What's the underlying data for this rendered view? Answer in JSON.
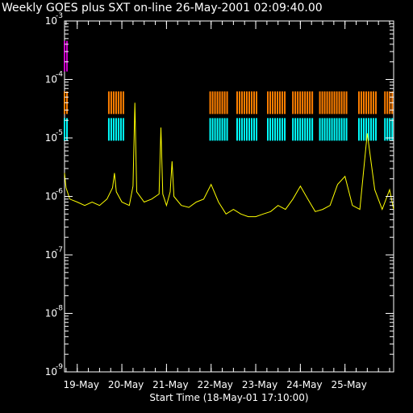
{
  "chart_data": {
    "type": "line",
    "title": "Weekly GOES plus SXT on-line 26-May-2001 02:09:40.00",
    "xlabel": "Start Time (18-May-01 17:10:00)",
    "ylabel": "",
    "y_scale": "log",
    "ylim": [
      1e-09,
      0.001
    ],
    "xlim": [
      "2001-05-18 17:10",
      "2001-05-26 02:10"
    ],
    "grid": false,
    "legend": "none",
    "x_ticks": [
      "19-May",
      "20-May",
      "21-May",
      "22-May",
      "23-May",
      "24-May",
      "25-May"
    ],
    "x_tick_dates": [
      "2001-05-19",
      "2001-05-20",
      "2001-05-21",
      "2001-05-22",
      "2001-05-23",
      "2001-05-24",
      "2001-05-25"
    ],
    "y_ticks": [
      {
        "base": "10",
        "exp": "-9",
        "value": 1e-09
      },
      {
        "base": "10",
        "exp": "-8",
        "value": 1e-08
      },
      {
        "base": "10",
        "exp": "-7",
        "value": 1e-07
      },
      {
        "base": "10",
        "exp": "-6",
        "value": 1e-06
      },
      {
        "base": "10",
        "exp": "-5",
        "value": 1e-05
      },
      {
        "base": "10",
        "exp": "-4",
        "value": 0.0001
      },
      {
        "base": "10",
        "exp": "-3",
        "value": 0.001
      }
    ],
    "series": [
      {
        "color": "#ffff00",
        "x": [
          "2001-05-18 17:10",
          "2001-05-18 18:00",
          "2001-05-18 20:00",
          "2001-05-19 00:00",
          "2001-05-19 04:00",
          "2001-05-19 08:00",
          "2001-05-19 12:00",
          "2001-05-19 16:00",
          "2001-05-19 19:00",
          "2001-05-19 20:00",
          "2001-05-19 21:00",
          "2001-05-20 00:00",
          "2001-05-20 04:00",
          "2001-05-20 06:00",
          "2001-05-20 07:00",
          "2001-05-20 08:00",
          "2001-05-20 12:00",
          "2001-05-20 16:00",
          "2001-05-20 20:00",
          "2001-05-20 21:00",
          "2001-05-20 22:00",
          "2001-05-21 00:00",
          "2001-05-21 02:00",
          "2001-05-21 03:00",
          "2001-05-21 04:00",
          "2001-05-21 08:00",
          "2001-05-21 12:00",
          "2001-05-21 16:00",
          "2001-05-21 20:00",
          "2001-05-22 00:00",
          "2001-05-22 04:00",
          "2001-05-22 08:00",
          "2001-05-22 12:00",
          "2001-05-22 16:00",
          "2001-05-22 20:00",
          "2001-05-23 00:00",
          "2001-05-23 04:00",
          "2001-05-23 08:00",
          "2001-05-23 12:00",
          "2001-05-23 16:00",
          "2001-05-23 20:00",
          "2001-05-24 00:00",
          "2001-05-24 04:00",
          "2001-05-24 08:00",
          "2001-05-24 12:00",
          "2001-05-24 16:00",
          "2001-05-24 20:00",
          "2001-05-25 00:00",
          "2001-05-25 04:00",
          "2001-05-25 08:00",
          "2001-05-25 12:00",
          "2001-05-25 16:00",
          "2001-05-25 20:00",
          "2001-05-26 00:00",
          "2001-05-26 02:10"
        ],
        "values": [
          2.5e-06,
          1.4e-06,
          9e-07,
          8e-07,
          7e-07,
          8e-07,
          7e-07,
          9e-07,
          1.4e-06,
          2.5e-06,
          1.2e-06,
          8e-07,
          7e-07,
          1.5e-06,
          4e-05,
          1.2e-06,
          8e-07,
          9e-07,
          1.1e-06,
          1.5e-05,
          1.1e-06,
          7e-07,
          1.2e-06,
          4e-06,
          1e-06,
          7e-07,
          6.5e-07,
          8e-07,
          9e-07,
          1.6e-06,
          8e-07,
          5e-07,
          6e-07,
          5e-07,
          4.5e-07,
          4.5e-07,
          5e-07,
          5.5e-07,
          7e-07,
          6e-07,
          9e-07,
          1.5e-06,
          9e-07,
          5.5e-07,
          6e-07,
          7e-07,
          1.6e-06,
          2.2e-06,
          7e-07,
          6e-07,
          1.2e-05,
          1.3e-06,
          6e-07,
          1.3e-06,
          6e-07
        ]
      },
      {
        "color": "#ff7f00",
        "markers": "vertical ticks"
      },
      {
        "color": "#00ffff",
        "markers": "vertical ticks"
      },
      {
        "color": "#cc00cc",
        "markers": "vertical ticks"
      }
    ],
    "sxt_bands": [
      {
        "color": "#ff7f00",
        "level": 4e-05,
        "intervals": [
          [
            "2001-05-18 17:10",
            "2001-05-18 19:00"
          ],
          [
            "2001-05-19 17:00",
            "2001-05-20 02:00"
          ],
          [
            "2001-05-21 23:30",
            "2001-05-22 09:30"
          ],
          [
            "2001-05-22 14:00",
            "2001-05-23 00:30"
          ],
          [
            "2001-05-23 06:30",
            "2001-05-23 16:30"
          ],
          [
            "2001-05-23 20:00",
            "2001-05-24 07:00"
          ],
          [
            "2001-05-24 10:30",
            "2001-05-25 02:00"
          ],
          [
            "2001-05-25 07:30",
            "2001-05-25 17:30"
          ],
          [
            "2001-05-25 21:30",
            "2001-05-26 02:10"
          ]
        ]
      },
      {
        "color": "#00ffff",
        "level": 1.4e-05,
        "intervals": [
          [
            "2001-05-18 17:10",
            "2001-05-18 19:00"
          ],
          [
            "2001-05-19 17:00",
            "2001-05-20 02:00"
          ],
          [
            "2001-05-21 23:30",
            "2001-05-22 09:30"
          ],
          [
            "2001-05-22 14:00",
            "2001-05-23 00:30"
          ],
          [
            "2001-05-23 06:30",
            "2001-05-23 16:30"
          ],
          [
            "2001-05-23 20:00",
            "2001-05-24 07:00"
          ],
          [
            "2001-05-24 10:30",
            "2001-05-25 02:00"
          ],
          [
            "2001-05-25 07:30",
            "2001-05-25 17:30"
          ],
          [
            "2001-05-25 21:30",
            "2001-05-26 02:10"
          ]
        ]
      },
      {
        "color": "#cc00cc",
        "level": 0.00025,
        "intervals": [
          [
            "2001-05-18 17:10",
            "2001-05-18 18:30"
          ]
        ]
      }
    ]
  }
}
